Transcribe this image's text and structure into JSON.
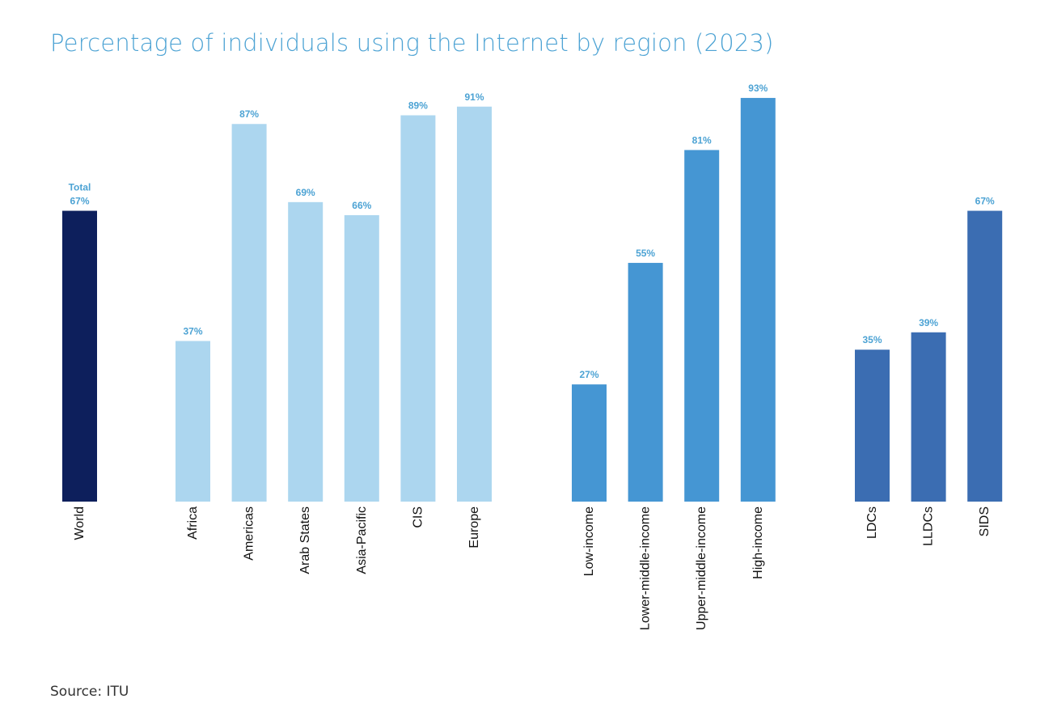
{
  "title": "Percentage of individuals using the Internet by region (2023)",
  "source": "Source: ITU",
  "chart_data": {
    "type": "bar",
    "title": "Percentage of individuals using the Internet by region (2023)",
    "xlabel": "",
    "ylabel": "",
    "ylim": [
      0,
      100
    ],
    "grid": false,
    "categories": [
      "World",
      "Africa",
      "Americas",
      "Arab States",
      "Asia-Pacific",
      "CIS",
      "Europe",
      "Low-income",
      "Lower-middle-income",
      "Upper-middle-income",
      "High-income",
      "LDCs",
      "LLDCs",
      "SIDS"
    ],
    "values": [
      67,
      37,
      87,
      69,
      66,
      89,
      91,
      27,
      55,
      81,
      93,
      35,
      39,
      67
    ],
    "value_labels": [
      "67%",
      "37%",
      "87%",
      "69%",
      "66%",
      "89%",
      "91%",
      "27%",
      "55%",
      "81%",
      "93%",
      "35%",
      "39%",
      "67%"
    ],
    "total_label": "Total",
    "groups": [
      {
        "color": "#0d1f5c",
        "categories": [
          "World"
        ]
      },
      {
        "color": "#acd6ef",
        "categories": [
          "Africa",
          "Americas",
          "Arab States",
          "Asia-Pacific",
          "CIS",
          "Europe"
        ]
      },
      {
        "color": "#4596d3",
        "categories": [
          "Low-income",
          "Lower-middle-income",
          "Upper-middle-income",
          "High-income"
        ]
      },
      {
        "color": "#3b6db2",
        "categories": [
          "LDCs",
          "LLDCs",
          "SIDS"
        ]
      }
    ],
    "label_color": "#4da3d4"
  }
}
